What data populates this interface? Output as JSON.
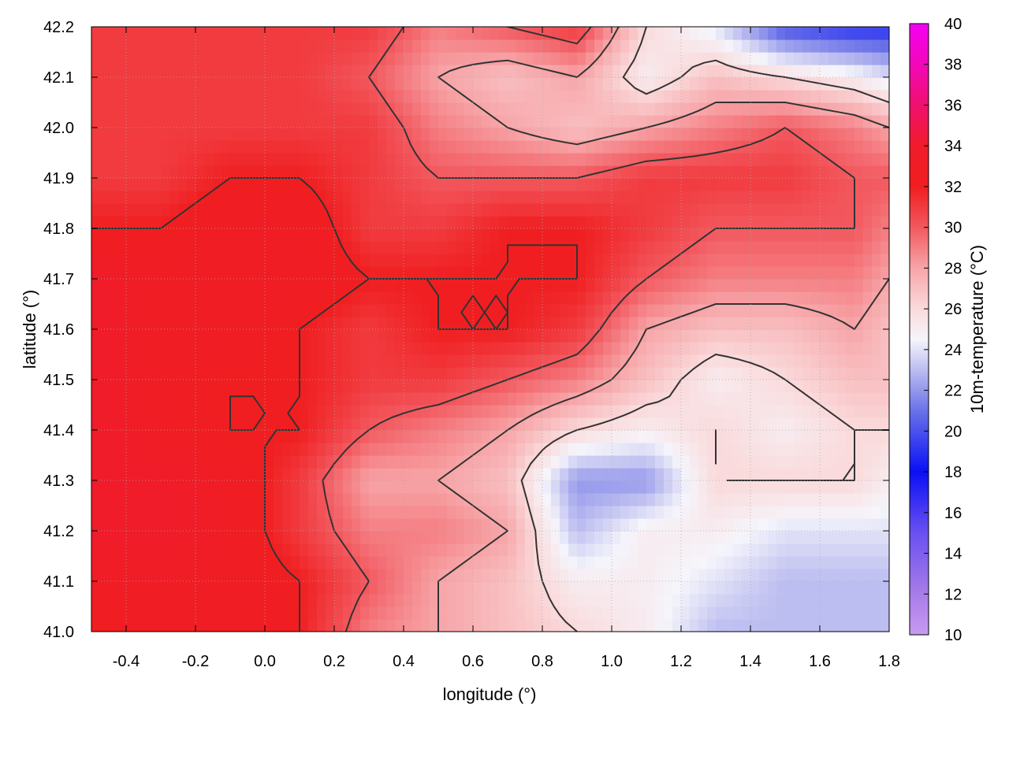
{
  "chart_data": {
    "type": "heatmap",
    "title": "",
    "xlabel": "longitude (°)",
    "ylabel": "latitude (°)",
    "xlim": [
      -0.5,
      1.8
    ],
    "ylim": [
      41.0,
      42.2
    ],
    "x_ticks": [
      "-0.4",
      "-0.2",
      "0.0",
      "0.2",
      "0.4",
      "0.6",
      "0.8",
      "1.0",
      "1.2",
      "1.4",
      "1.6",
      "1.8"
    ],
    "y_ticks": [
      "41.0",
      "41.1",
      "41.2",
      "41.3",
      "41.4",
      "41.5",
      "41.6",
      "41.7",
      "41.8",
      "41.9",
      "42.0",
      "42.1",
      "42.2"
    ],
    "grid": true,
    "colorbar": {
      "label": "10m-temperature (°C)",
      "range": [
        10,
        40
      ],
      "ticks": [
        "10",
        "12",
        "14",
        "16",
        "18",
        "20",
        "22",
        "24",
        "26",
        "28",
        "30",
        "32",
        "34",
        "36",
        "38",
        "40"
      ],
      "stops": [
        {
          "value": 10,
          "color": "#c89bf0"
        },
        {
          "value": 12,
          "color": "#a87ce8"
        },
        {
          "value": 15,
          "color": "#6a50f0"
        },
        {
          "value": 18,
          "color": "#0a10f5"
        },
        {
          "value": 21,
          "color": "#6a72e8"
        },
        {
          "value": 23,
          "color": "#bcbdf0"
        },
        {
          "value": 24.5,
          "color": "#f5f5fb"
        },
        {
          "value": 26,
          "color": "#fadadb"
        },
        {
          "value": 28,
          "color": "#f7a5a8"
        },
        {
          "value": 30,
          "color": "#f2585e"
        },
        {
          "value": 32,
          "color": "#f01e20"
        },
        {
          "value": 34,
          "color": "#f01c2a"
        },
        {
          "value": 36,
          "color": "#f0106e"
        },
        {
          "value": 38,
          "color": "#f208b8"
        },
        {
          "value": 40,
          "color": "#f400f4"
        }
      ]
    },
    "lon": [
      -0.5,
      -0.3,
      -0.1,
      0.1,
      0.3,
      0.5,
      0.7,
      0.9,
      1.1,
      1.3,
      1.5,
      1.7,
      1.8
    ],
    "lat": [
      41.0,
      41.1,
      41.2,
      41.3,
      41.4,
      41.5,
      41.6,
      41.7,
      41.8,
      41.9,
      42.0,
      42.1,
      42.2
    ],
    "temperature": [
      [
        32,
        33,
        33,
        32,
        29,
        28,
        27,
        26,
        25,
        23,
        23,
        23,
        23
      ],
      [
        33,
        33,
        33,
        32,
        30,
        28,
        27,
        25,
        25,
        24,
        23,
        23,
        23
      ],
      [
        34,
        34,
        33,
        31,
        29,
        29,
        28,
        23,
        25,
        25,
        24,
        24,
        24
      ],
      [
        34,
        34,
        33,
        31,
        28,
        28,
        27,
        22,
        22,
        26,
        26,
        26,
        25
      ],
      [
        34,
        33,
        32,
        32,
        30,
        29,
        28,
        26,
        25,
        26,
        25,
        26,
        26
      ],
      [
        34,
        33,
        32,
        32,
        31,
        31,
        30,
        29,
        27,
        25,
        26,
        27,
        27
      ],
      [
        34,
        33,
        33,
        32,
        31,
        32,
        32,
        31,
        28,
        27,
        27,
        28,
        27
      ],
      [
        34,
        33,
        33,
        33,
        32,
        32,
        32,
        32,
        30,
        29,
        29,
        29,
        28
      ],
      [
        32,
        32,
        33,
        33,
        31,
        31,
        32,
        32,
        31,
        30,
        30,
        30,
        29
      ],
      [
        31,
        31,
        32,
        32,
        31,
        30,
        30,
        30,
        31,
        31,
        31,
        30,
        30
      ],
      [
        31,
        31,
        31,
        31,
        31,
        29,
        28,
        27,
        28,
        29,
        30,
        29,
        28
      ],
      [
        31,
        31,
        31,
        31,
        30,
        28,
        27,
        28,
        25,
        27,
        26,
        25,
        24
      ],
      [
        31,
        31,
        31,
        31,
        31,
        29,
        30,
        31,
        26,
        24,
        20,
        19,
        19
      ]
    ],
    "contour_levels": [
      26,
      28,
      30,
      32
    ]
  }
}
